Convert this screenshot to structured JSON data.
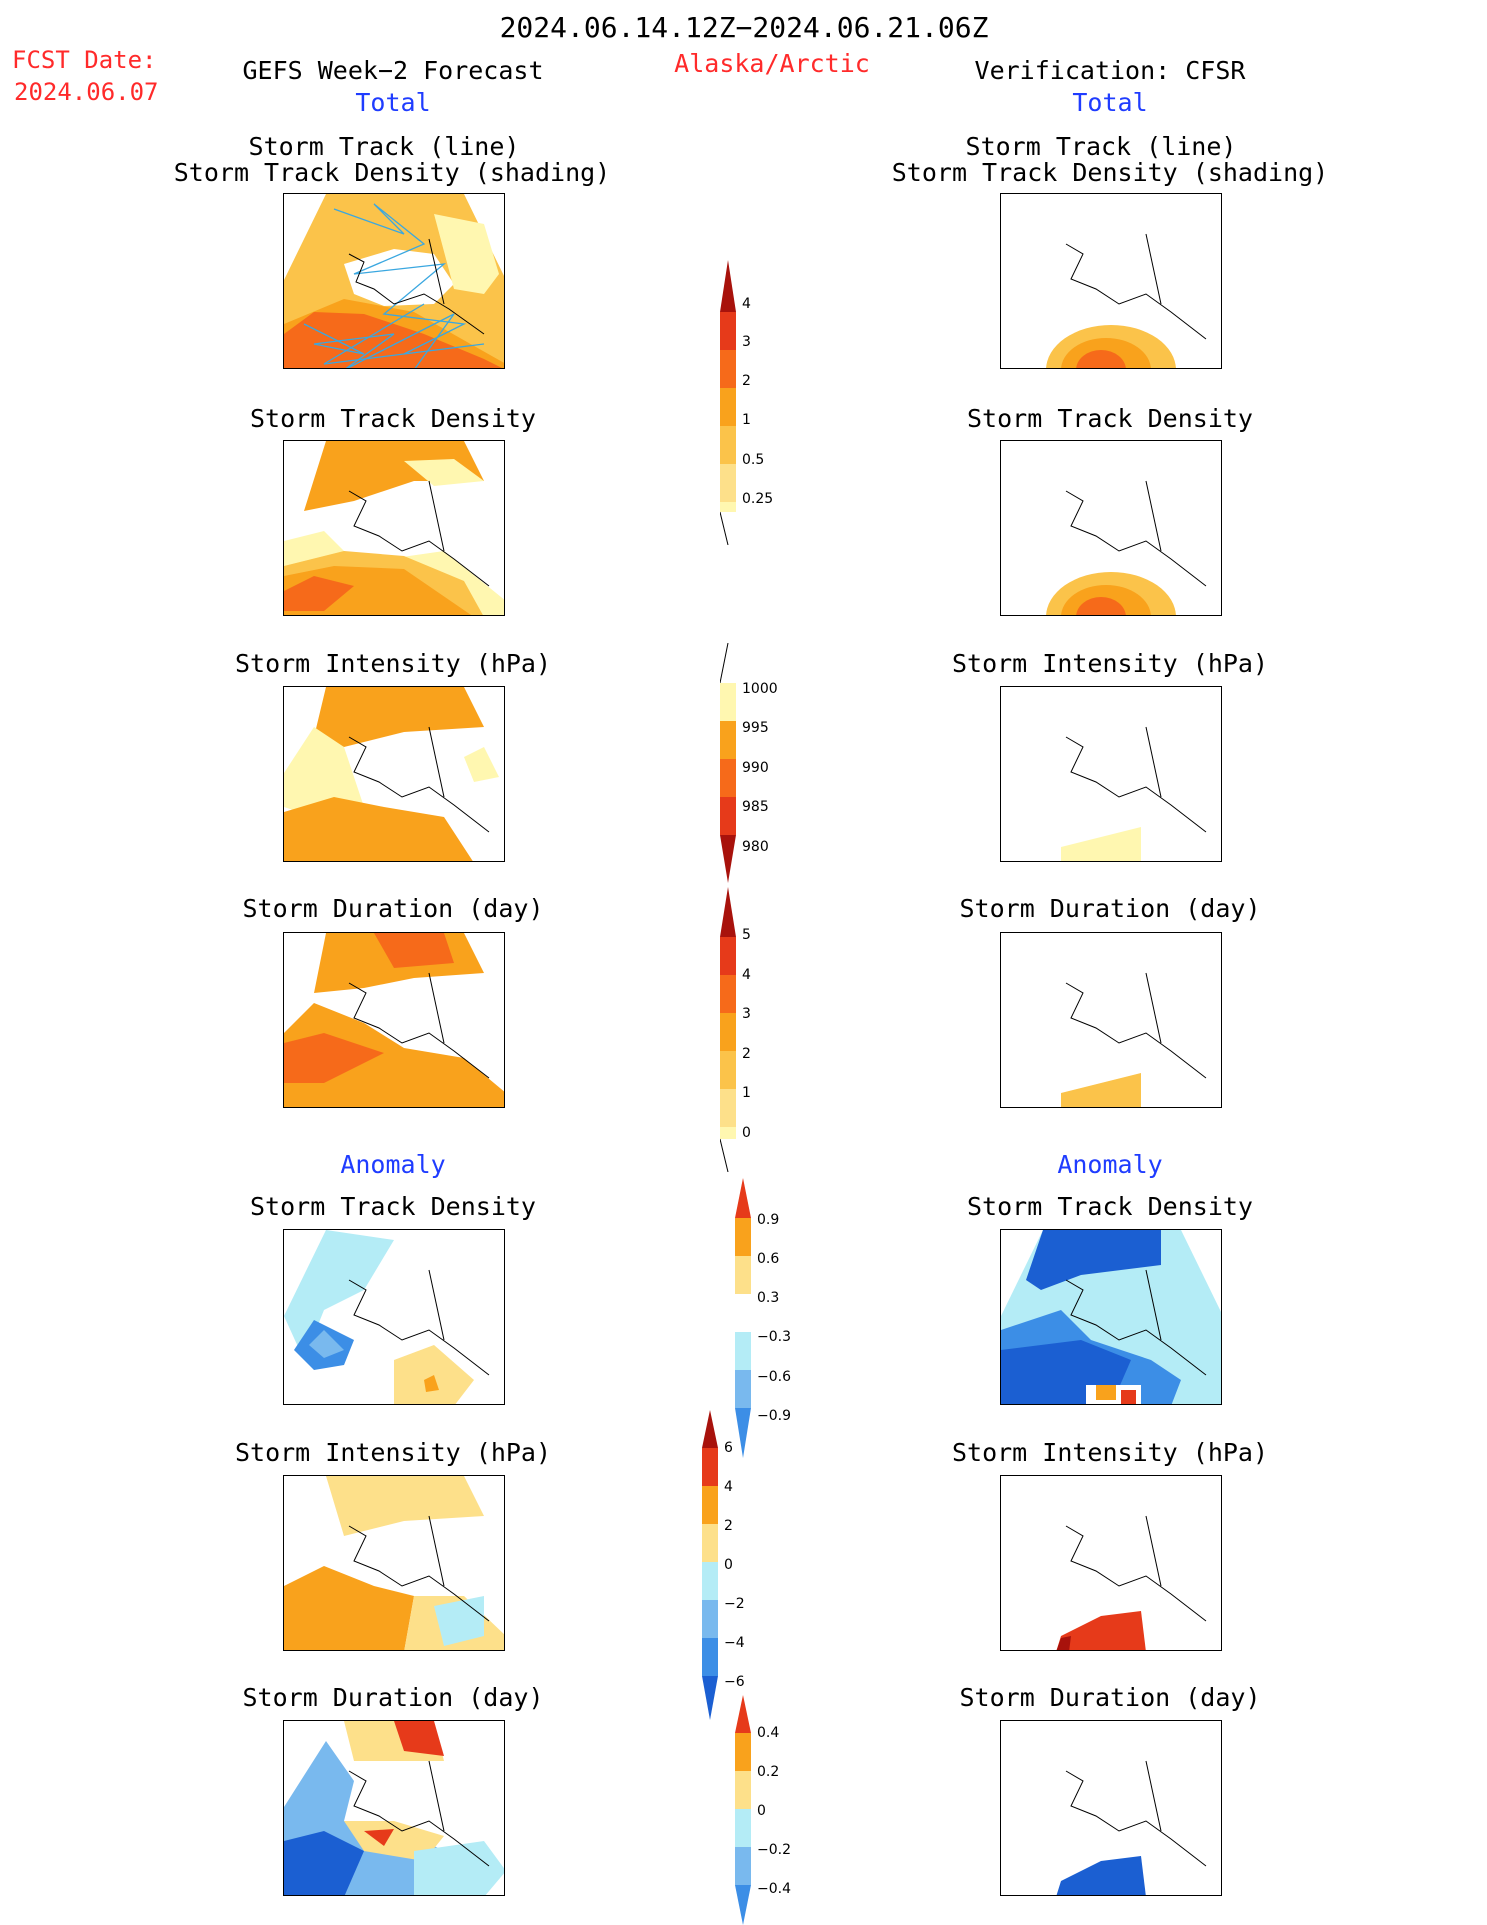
{
  "header": {
    "date_range": "2024.06.14.12Z−2024.06.21.06Z",
    "fcst_label": "FCST Date:",
    "fcst_date": "2024.06.07",
    "left_title": "GEFS Week−2 Forecast",
    "region": "Alaska/Arctic",
    "right_title": "Verification: CFSR"
  },
  "sections": {
    "total": "Total",
    "anomaly": "Anomaly"
  },
  "panel_titles": {
    "track_line": "Storm Track (line)",
    "track_density_shading": "Storm Track Density (shading)",
    "track_density": "Storm Track Density",
    "intensity": "Storm Intensity (hPa)",
    "duration": "Storm Duration (day)"
  },
  "colorbars": {
    "density": [
      "4",
      "3",
      "2",
      "1",
      "0.5",
      "0.25"
    ],
    "intensity": [
      "1000",
      "995",
      "990",
      "985",
      "980"
    ],
    "duration": [
      "5",
      "4",
      "3",
      "2",
      "1",
      "0"
    ],
    "density_anom": [
      "0.9",
      "0.6",
      "0.3",
      "−0.3",
      "−0.6",
      "−0.9"
    ],
    "intensity_anom": [
      "6",
      "4",
      "2",
      "0",
      "−2",
      "−4",
      "−6"
    ],
    "duration_anom": [
      "0.4",
      "0.2",
      "0",
      "−0.2",
      "−0.4"
    ]
  },
  "colors": {
    "pale_yellow": "#fff7b0",
    "light_orange": "#fbc34a",
    "orange": "#f9a21c",
    "dark_orange": "#f66a1a",
    "red": "#e63a1a",
    "dark_red": "#a8120c",
    "light_blue": "#b4ecf6",
    "mid_blue": "#79b9ee",
    "blue": "#3c8ee6",
    "dark_blue": "#1b5fd2",
    "track_line": "#3aa7e0"
  }
}
